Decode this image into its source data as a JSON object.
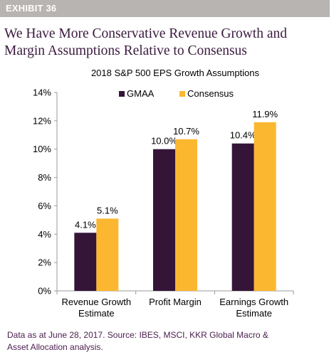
{
  "header": {
    "exhibit": "EXHIBIT 36",
    "title_lines": [
      "We Have More Conservative Revenue Growth and",
      "Margin Assumptions Relative to Consensus"
    ]
  },
  "chart_data": {
    "type": "bar",
    "title": "2018 S&P 500 EPS Growth Assumptions",
    "categories": [
      [
        "Revenue Growth",
        "Estimate"
      ],
      [
        "Profit Margin"
      ],
      [
        "Earnings Growth",
        "Estimate"
      ]
    ],
    "series": [
      {
        "name": "GMAA",
        "values": [
          4.1,
          10.0,
          10.4
        ],
        "labels": [
          "4.1%",
          "10.0%",
          "10.4%"
        ],
        "color": "#341538"
      },
      {
        "name": "Consensus",
        "values": [
          5.1,
          10.7,
          11.9
        ],
        "labels": [
          "5.1%",
          "10.7%",
          "11.9%"
        ],
        "color": "#fbb730"
      }
    ],
    "ylim": [
      0,
      14
    ],
    "yticks": [
      "0%",
      "2%",
      "4%",
      "6%",
      "8%",
      "10%",
      "12%",
      "14%"
    ],
    "xlabel": "",
    "ylabel": "",
    "legend": "top-center",
    "grid": false
  },
  "footnote": {
    "line1": "Data as at June 28, 2017. Source: IBES, MSCI, KKR Global Macro &",
    "line2": "Asset Allocation analysis."
  }
}
